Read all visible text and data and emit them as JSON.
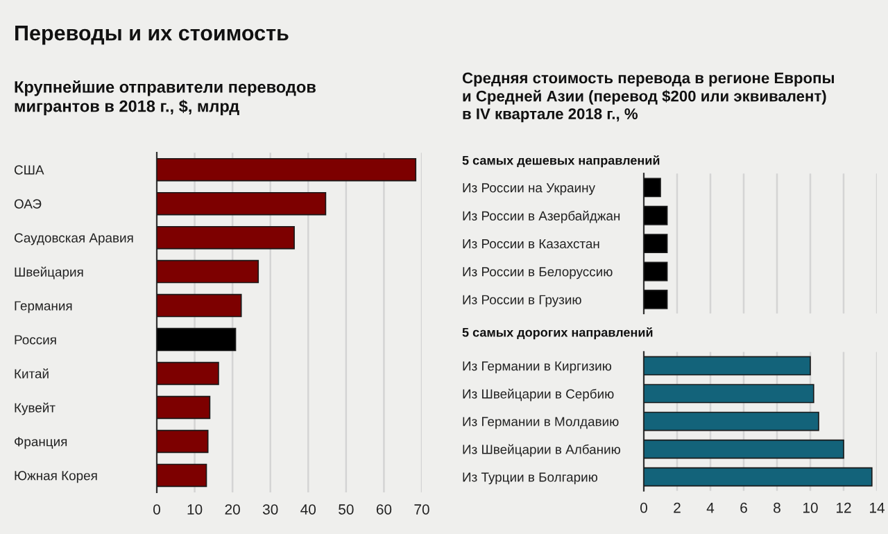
{
  "chart_data": [
    {
      "type": "bar",
      "orientation": "horizontal",
      "title": "Переводы и их стоимость",
      "subtitle": "Крупнейшие отправители переводов\nмигрантов в 2018 г., $, млрд",
      "categories": [
        "США",
        "ОАЭ",
        "Саудовская Аравия",
        "Швейцария",
        "Германия",
        "Россия",
        "Китай",
        "Кувейт",
        "Франция",
        "Южная Корея"
      ],
      "values": [
        68.4,
        44.6,
        36.3,
        26.8,
        22.3,
        20.8,
        16.3,
        14,
        13.5,
        13.1
      ],
      "colors": [
        "#7d0000",
        "#7d0000",
        "#7d0000",
        "#7d0000",
        "#7d0000",
        "#000000",
        "#7d0000",
        "#7d0000",
        "#7d0000",
        "#7d0000"
      ],
      "xlim": [
        0,
        70
      ],
      "xticks": [
        0,
        10,
        20,
        30,
        40,
        50,
        60,
        70
      ],
      "grid": "x"
    },
    {
      "type": "bar",
      "orientation": "horizontal",
      "title": "Средняя стоимость перевода в регионе Европы\nи Средней Азии (перевод $200 или эквивалент)\nв IV квартале 2018 г., %",
      "subtitle": "5 самых дешевых направлений",
      "categories": [
        "Из России на Украину",
        "Из России в Азербайджан",
        "Из России в Казахстан",
        "Из России в Белоруссию",
        "Из России в Грузию"
      ],
      "values": [
        1.0,
        1.4,
        1.4,
        1.4,
        1.4
      ],
      "colors": [
        "#000000",
        "#000000",
        "#000000",
        "#000000",
        "#000000"
      ],
      "xlim": [
        0,
        14
      ],
      "xticks": [
        0,
        2,
        4,
        6,
        8,
        10,
        12,
        14
      ],
      "grid": "x",
      "tick_labels": "y"
    },
    {
      "type": "bar",
      "orientation": "horizontal",
      "title": "5 самых дорогих направлений",
      "categories": [
        "Из Германии в Киргизию",
        "Из Швейцарии в Сербию",
        "Из Германии в Молдавию",
        "Из Швейцарии в Албанию",
        "Из Турции в Болгарию"
      ],
      "values": [
        10,
        10.2,
        10.5,
        12,
        13.7
      ],
      "colors": [
        "#13637a",
        "#13637a",
        "#13637a",
        "#13637a",
        "#13637a"
      ],
      "xlim": [
        0,
        14
      ],
      "xticks": [
        0,
        2,
        4,
        6,
        8,
        10,
        12,
        14
      ],
      "grid": "x"
    }
  ]
}
